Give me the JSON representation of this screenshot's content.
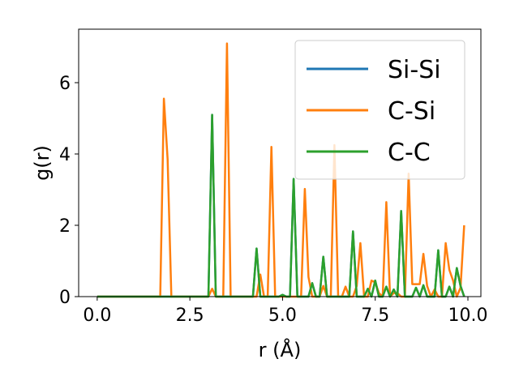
{
  "chart_data": {
    "type": "line",
    "title": "",
    "xlabel": "r (Å)",
    "ylabel": "g(r)",
    "xlim": [
      -0.5,
      10.35
    ],
    "ylim": [
      0,
      7.5
    ],
    "xticks": [
      0.0,
      2.5,
      5.0,
      7.5,
      10.0
    ],
    "xtick_labels": [
      "0.0",
      "2.5",
      "5.0",
      "7.5",
      "10.0"
    ],
    "yticks": [
      0,
      2,
      4,
      6
    ],
    "ytick_labels": [
      "0",
      "2",
      "4",
      "6"
    ],
    "grid": false,
    "legend_position": "top-right",
    "x": [
      0.0,
      0.1,
      0.2,
      0.3,
      0.4,
      0.5,
      0.6,
      0.7,
      0.8,
      0.9,
      1.0,
      1.1,
      1.2,
      1.3,
      1.4,
      1.5,
      1.6,
      1.7,
      1.8,
      1.9,
      2.0,
      2.1,
      2.2,
      2.3,
      2.4,
      2.5,
      2.6,
      2.7,
      2.8,
      2.9,
      3.0,
      3.1,
      3.2,
      3.3,
      3.4,
      3.5,
      3.6,
      3.7,
      3.8,
      3.9,
      4.0,
      4.1,
      4.2,
      4.3,
      4.4,
      4.5,
      4.6,
      4.7,
      4.8,
      4.9,
      5.0,
      5.1,
      5.2,
      5.3,
      5.4,
      5.5,
      5.6,
      5.7,
      5.8,
      5.9,
      6.0,
      6.1,
      6.2,
      6.3,
      6.4,
      6.5,
      6.6,
      6.7,
      6.8,
      6.9,
      7.0,
      7.1,
      7.2,
      7.3,
      7.4,
      7.5,
      7.6,
      7.7,
      7.8,
      7.9,
      8.0,
      8.1,
      8.2,
      8.3,
      8.4,
      8.5,
      8.6,
      8.7,
      8.8,
      8.9,
      9.0,
      9.1,
      9.2,
      9.3,
      9.4,
      9.5,
      9.6,
      9.7,
      9.8,
      9.9
    ],
    "series": [
      {
        "name": "Si-Si",
        "color": "#1f77b4",
        "values": [
          0,
          0,
          0,
          0,
          0,
          0,
          0,
          0,
          0,
          0,
          0,
          0,
          0,
          0,
          0,
          0,
          0,
          0,
          0,
          0,
          0,
          0,
          0,
          0,
          0,
          0,
          0,
          0,
          0,
          0,
          0,
          5.1,
          0,
          0,
          0,
          0,
          0,
          0,
          0,
          0,
          0,
          0,
          0,
          1.35,
          0,
          0,
          0,
          0,
          0,
          0,
          0.05,
          0,
          0,
          3.3,
          0,
          0,
          0,
          0,
          0.38,
          0,
          0,
          1.12,
          0,
          0,
          0,
          0,
          0,
          0,
          0,
          1.83,
          0,
          0,
          0,
          0.22,
          0,
          0.45,
          0,
          0,
          0.28,
          0,
          0.2,
          0,
          2.4,
          0,
          0,
          0,
          0.25,
          0,
          0.32,
          0,
          0,
          0,
          1.3,
          0,
          0,
          0.28,
          0,
          0.8,
          0.3,
          0
        ]
      },
      {
        "name": "C-Si",
        "color": "#ff7f0e",
        "values": [
          0,
          0,
          0,
          0,
          0,
          0,
          0,
          0,
          0,
          0,
          0,
          0,
          0,
          0,
          0,
          0,
          0,
          0,
          5.55,
          3.85,
          0,
          0,
          0,
          0,
          0,
          0,
          0,
          0,
          0,
          0,
          0,
          0.22,
          0,
          0,
          0,
          7.1,
          0,
          0,
          0,
          0,
          0,
          0,
          0,
          0,
          0.62,
          0,
          0,
          4.2,
          0,
          0,
          0,
          0,
          0,
          0,
          0,
          0,
          3.02,
          0.55,
          0,
          0,
          0,
          0.3,
          0,
          0,
          4.25,
          0,
          0,
          0.28,
          0,
          0,
          0.3,
          1.5,
          0,
          0,
          0.45,
          0.4,
          0.1,
          0,
          2.65,
          0,
          0.1,
          0.1,
          0,
          0,
          3.45,
          0.35,
          0.35,
          0.35,
          1.2,
          0.3,
          0,
          0.2,
          0,
          0,
          1.5,
          0.75,
          0.45,
          0,
          0.25,
          2.0
        ]
      },
      {
        "name": "C-C",
        "color": "#2ca02c",
        "values": [
          0,
          0,
          0,
          0,
          0,
          0,
          0,
          0,
          0,
          0,
          0,
          0,
          0,
          0,
          0,
          0,
          0,
          0,
          0,
          0,
          0,
          0,
          0,
          0,
          0,
          0,
          0,
          0,
          0,
          0,
          0,
          5.1,
          0,
          0,
          0,
          0,
          0,
          0,
          0,
          0,
          0,
          0,
          0,
          1.35,
          0,
          0,
          0,
          0,
          0,
          0,
          0.05,
          0,
          0,
          3.3,
          0,
          0,
          0,
          0,
          0.38,
          0,
          0,
          1.12,
          0,
          0,
          0,
          0,
          0,
          0,
          0,
          1.83,
          0,
          0,
          0,
          0.22,
          0,
          0.45,
          0,
          0,
          0.28,
          0,
          0.2,
          0,
          2.4,
          0,
          0,
          0,
          0.25,
          0,
          0.32,
          0,
          0,
          0,
          1.3,
          0,
          0,
          0.28,
          0,
          0.8,
          0.3,
          0
        ]
      }
    ]
  }
}
